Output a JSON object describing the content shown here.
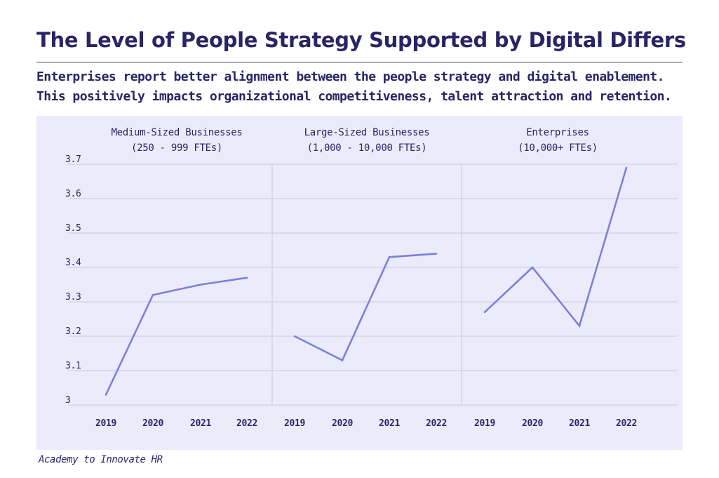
{
  "header": {
    "title": "The Level of People Strategy Supported by Digital Differs",
    "subtitle_line1": "Enterprises report better alignment between the people strategy and digital enablement.",
    "subtitle_line2": "This positively impacts organizational competitiveness, talent attraction and retention."
  },
  "footer": {
    "source": "Academy to Innovate HR"
  },
  "colors": {
    "line": "#7a82d6",
    "panel": "#ecebfb",
    "grid": "#c9c8dd",
    "text": "#2a2466"
  },
  "chart_data": [
    {
      "type": "line",
      "title_line1": "Medium-Sized Businesses",
      "title_line2": "(250 - 999 FTEs)",
      "x": [
        "2019",
        "2020",
        "2021",
        "2022"
      ],
      "values": [
        3.03,
        3.32,
        3.35,
        3.37
      ],
      "ylim": [
        3,
        3.7
      ],
      "yticks": [
        "3",
        "3.1",
        "3.2",
        "3.3",
        "3.4",
        "3.5",
        "3.6",
        "3.7"
      ],
      "grid": true
    },
    {
      "type": "line",
      "title_line1": "Large-Sized Businesses",
      "title_line2": "(1,000 - 10,000 FTEs)",
      "x": [
        "2019",
        "2020",
        "2021",
        "2022"
      ],
      "values": [
        3.2,
        3.13,
        3.43,
        3.44
      ],
      "ylim": [
        3,
        3.7
      ],
      "grid": true
    },
    {
      "type": "line",
      "title_line1": "Enterprises",
      "title_line2": "(10,000+ FTEs)",
      "x": [
        "2019",
        "2020",
        "2021",
        "2022"
      ],
      "values": [
        3.27,
        3.4,
        3.23,
        3.69
      ],
      "ylim": [
        3,
        3.7
      ],
      "grid": true
    }
  ]
}
